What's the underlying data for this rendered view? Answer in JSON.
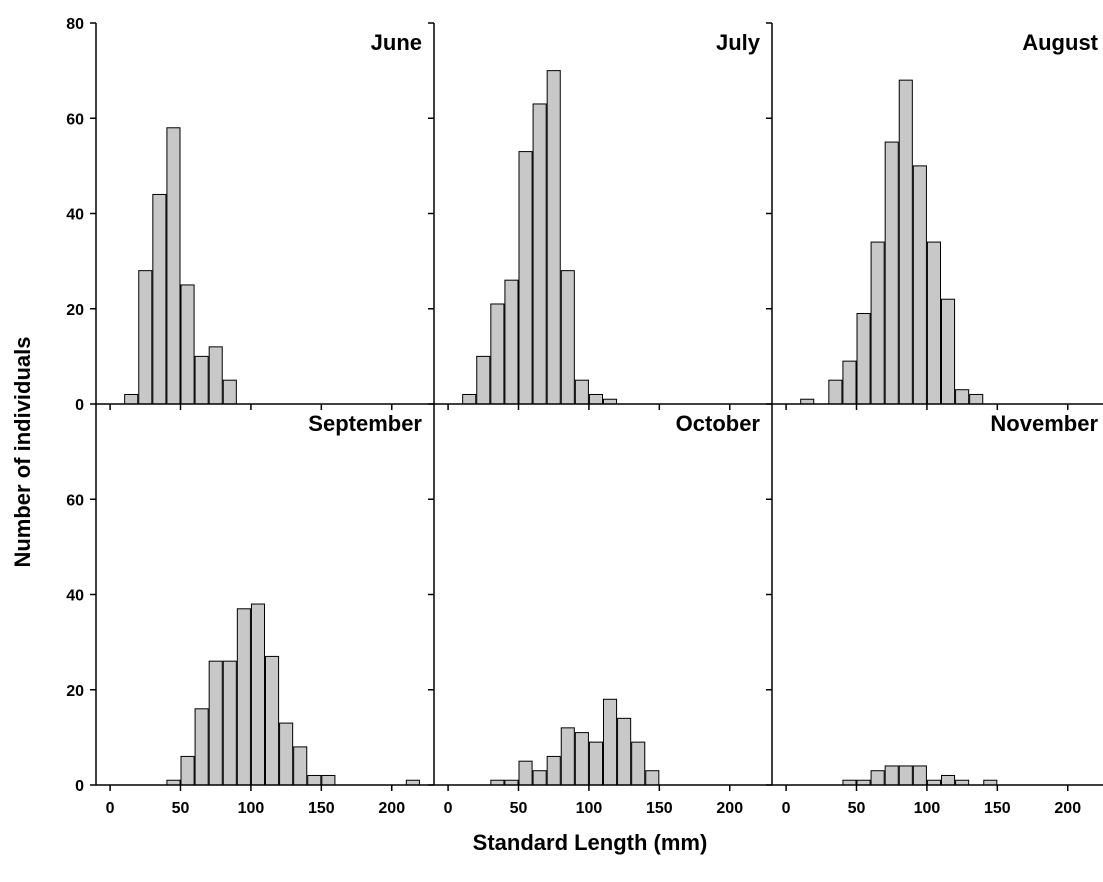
{
  "chart_data": {
    "type": "bar",
    "xlabel": "Standard Length (mm)",
    "ylabel": "Number of individuals",
    "xlim": [
      -10,
      230
    ],
    "ylim": [
      0,
      80
    ],
    "xticks": [
      0,
      50,
      100,
      150,
      200
    ],
    "yticks": [
      0,
      20,
      40,
      60,
      80
    ],
    "bin_width": 10,
    "grid": false,
    "colors": {
      "bar_fill": "#c8c8c8",
      "bar_stroke": "#000000",
      "axis": "#000000"
    },
    "panels": [
      {
        "title": "June",
        "bins": [
          15,
          25,
          35,
          45,
          55,
          65,
          75,
          85
        ],
        "values": [
          2,
          28,
          44,
          58,
          25,
          10,
          12,
          5
        ]
      },
      {
        "title": "July",
        "bins": [
          15,
          25,
          35,
          45,
          55,
          65,
          75,
          85,
          95,
          105,
          115
        ],
        "values": [
          2,
          10,
          21,
          26,
          53,
          63,
          70,
          28,
          5,
          2,
          1
        ]
      },
      {
        "title": "August",
        "bins": [
          15,
          35,
          45,
          55,
          65,
          75,
          85,
          95,
          105,
          115,
          125,
          135
        ],
        "values": [
          1,
          5,
          9,
          19,
          34,
          55,
          68,
          50,
          34,
          22,
          3,
          2
        ]
      },
      {
        "title": "September",
        "bins": [
          45,
          55,
          65,
          75,
          85,
          95,
          105,
          115,
          125,
          135,
          145,
          155,
          215
        ],
        "values": [
          1,
          6,
          16,
          26,
          26,
          37,
          38,
          27,
          13,
          8,
          2,
          2,
          1
        ]
      },
      {
        "title": "October",
        "bins": [
          35,
          45,
          55,
          65,
          75,
          85,
          95,
          105,
          115,
          125,
          135,
          145
        ],
        "values": [
          1,
          1,
          5,
          3,
          6,
          12,
          11,
          9,
          18,
          14,
          9,
          3
        ]
      },
      {
        "title": "November",
        "bins": [
          45,
          55,
          65,
          75,
          85,
          95,
          105,
          115,
          125,
          145
        ],
        "values": [
          1,
          1,
          3,
          4,
          4,
          4,
          1,
          2,
          1,
          1
        ]
      }
    ]
  }
}
